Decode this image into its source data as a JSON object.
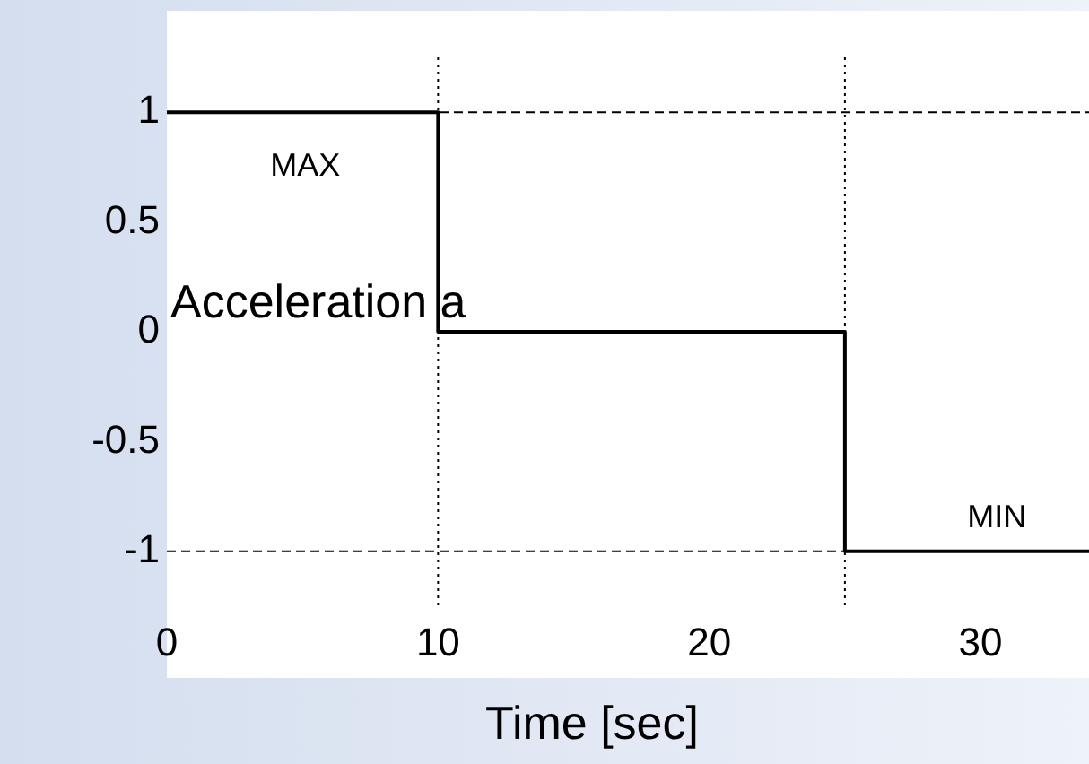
{
  "chart_data": {
    "type": "line",
    "xlabel": "Time [sec]",
    "ylabel": "Acceleration a",
    "xlim": [
      0,
      34
    ],
    "xticks": [
      0,
      10,
      20,
      30
    ],
    "ylim": [
      -1.25,
      1.25
    ],
    "yticks": [
      -1,
      -0.5,
      0,
      0.5,
      1
    ],
    "grid": false,
    "legend": false,
    "marker": "none",
    "line_style": "solid",
    "series": [
      {
        "color": "#000000",
        "x": [
          0,
          10,
          10,
          25,
          25,
          34
        ],
        "values": [
          1,
          1,
          0,
          0,
          -1,
          -1
        ]
      }
    ],
    "ref_lines": [
      {
        "axis": "y",
        "value": 1,
        "color": "#000000",
        "line_style": "dashed"
      },
      {
        "axis": "y",
        "value": -1,
        "color": "#000000",
        "line_style": "dashed"
      },
      {
        "axis": "x",
        "value": 10,
        "color": "#000000",
        "line_style": "dotted"
      },
      {
        "axis": "x",
        "value": 25,
        "color": "#000000",
        "line_style": "dotted"
      }
    ],
    "annotations": [
      "MAX",
      "MIN"
    ]
  }
}
